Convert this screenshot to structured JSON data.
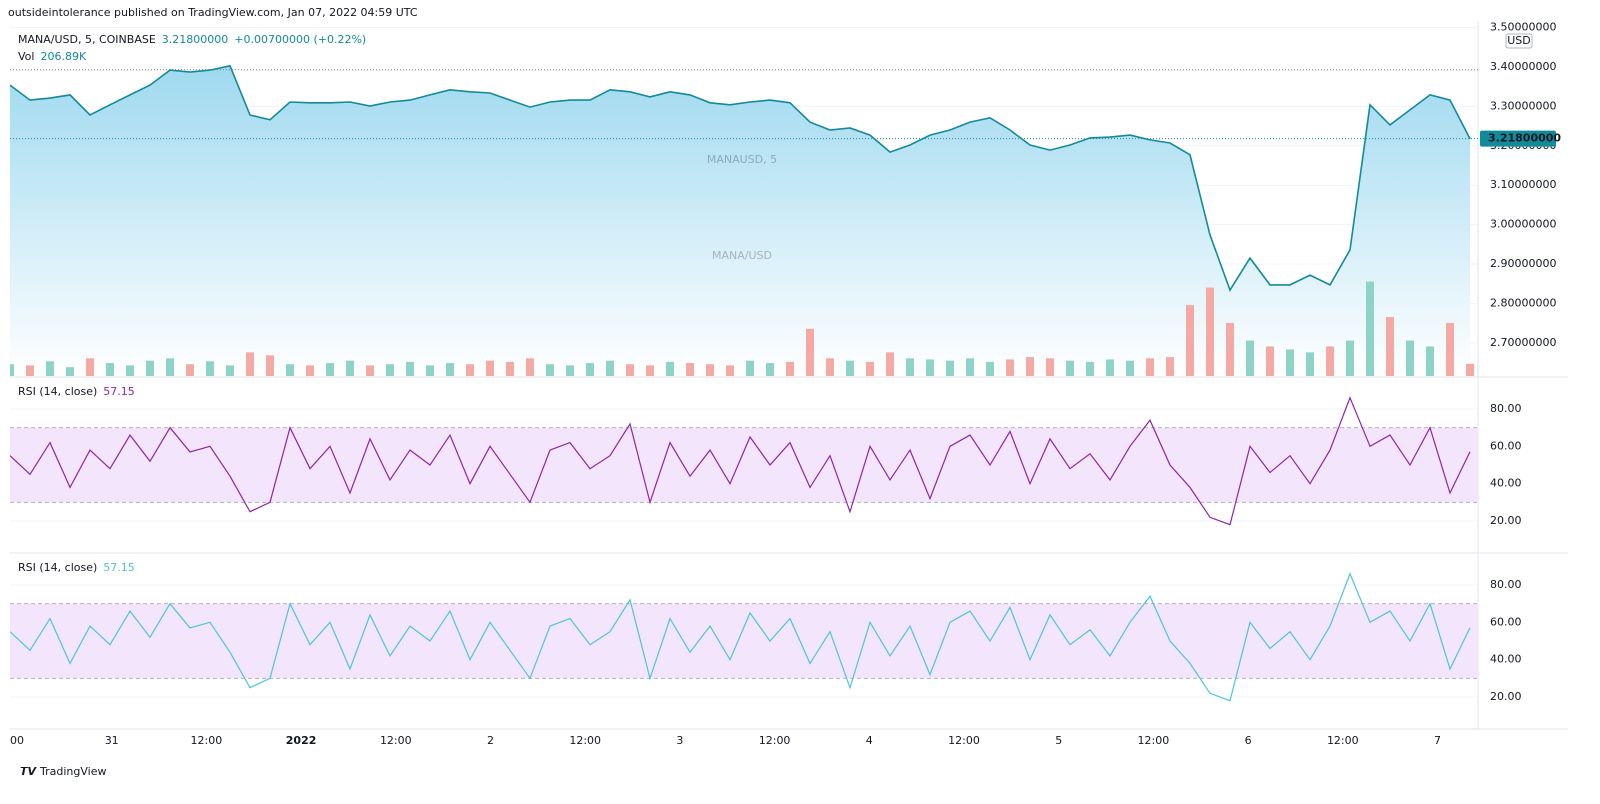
{
  "header": {
    "text": "outsideintolerance published on TradingView.com, Jan 07, 2022 04:59 UTC"
  },
  "chart_data": [
    {
      "type": "area",
      "title": "MANA/USD, 5, COINBASE",
      "last_label": "3.21800000",
      "change": "+0.00700000 (+0.22%)",
      "watermark": "MANAUSD, 5",
      "watermark_sub": "MANA/USD",
      "currency": "USD",
      "color": "#138a9a",
      "fill": "#b3e2f4",
      "values": [
        3.354,
        3.316,
        3.321,
        3.329,
        3.278,
        3.304,
        3.329,
        3.354,
        3.392,
        3.387,
        3.392,
        3.403,
        3.278,
        3.266,
        3.311,
        3.309,
        3.309,
        3.311,
        3.301,
        3.311,
        3.316,
        3.329,
        3.342,
        3.337,
        3.334,
        3.316,
        3.298,
        3.311,
        3.316,
        3.316,
        3.342,
        3.337,
        3.324,
        3.337,
        3.329,
        3.309,
        3.304,
        3.311,
        3.316,
        3.309,
        3.26,
        3.24,
        3.245,
        3.227,
        3.184,
        3.202,
        3.227,
        3.24,
        3.26,
        3.271,
        3.24,
        3.202,
        3.189,
        3.202,
        3.22,
        3.222,
        3.227,
        3.215,
        3.207,
        3.177,
        2.974,
        2.834,
        2.915,
        2.847,
        2.847,
        2.872,
        2.847,
        2.936,
        3.304,
        3.253,
        3.291,
        3.329,
        3.316,
        3.218
      ],
      "last_value": 3.218,
      "high_line": 3.393,
      "ylim": [
        2.616,
        3.514
      ],
      "yticks": [
        {
          "value": 2.7,
          "label": "2.70000000"
        },
        {
          "value": 2.8,
          "label": "2.80000000"
        },
        {
          "value": 2.9,
          "label": "2.90000000"
        },
        {
          "value": 3.0,
          "label": "3.00000000"
        },
        {
          "value": 3.1,
          "label": "3.10000000"
        },
        {
          "value": 3.2,
          "label": "3.20000000"
        },
        {
          "value": 3.3,
          "label": "3.30000000"
        },
        {
          "value": 3.4,
          "label": "3.40000000"
        },
        {
          "value": 3.5,
          "label": "3.50000000"
        }
      ],
      "volume": {
        "label": "Vol",
        "value_label": "206.89K",
        "up_color": "#8fd3c8",
        "down_color": "#f4a9a4",
        "vlim": [
          0,
          6000
        ],
        "values": [
          200,
          180,
          250,
          150,
          300,
          220,
          180,
          260,
          300,
          200,
          250,
          180,
          400,
          350,
          200,
          180,
          220,
          260,
          180,
          200,
          240,
          180,
          220,
          200,
          260,
          240,
          300,
          200,
          180,
          220,
          260,
          200,
          180,
          240,
          220,
          200,
          180,
          260,
          220,
          240,
          800,
          300,
          260,
          240,
          400,
          300,
          280,
          260,
          300,
          240,
          280,
          320,
          300,
          260,
          240,
          280,
          260,
          300,
          320,
          1200,
          1500,
          900,
          600,
          500,
          450,
          400,
          500,
          600,
          1600,
          1000,
          600,
          500,
          900,
          206.89
        ]
      }
    },
    {
      "type": "line",
      "title": "RSI (14, close)",
      "last_label": "57.15",
      "color": "#8e24aa",
      "band": [
        30,
        70
      ],
      "band_color": "#f3e5fb",
      "values": [
        55,
        45,
        62,
        38,
        58,
        48,
        66,
        52,
        70,
        57,
        60,
        44,
        25,
        30,
        70,
        48,
        60,
        35,
        64,
        42,
        58,
        50,
        66,
        40,
        60,
        45,
        30,
        58,
        62,
        48,
        55,
        72,
        30,
        62,
        44,
        58,
        40,
        65,
        50,
        62,
        38,
        55,
        25,
        60,
        42,
        58,
        32,
        60,
        66,
        50,
        68,
        40,
        64,
        48,
        56,
        42,
        60,
        74,
        50,
        38,
        22,
        18,
        60,
        46,
        55,
        40,
        58,
        86,
        60,
        66,
        50,
        70,
        35,
        57.15
      ],
      "ylim": [
        3.4,
        96.6
      ],
      "yticks": [
        {
          "value": 20,
          "label": "20.00"
        },
        {
          "value": 40,
          "label": "40.00"
        },
        {
          "value": 60,
          "label": "60.00"
        },
        {
          "value": 80,
          "label": "80.00"
        }
      ]
    },
    {
      "type": "line",
      "title": "RSI (14, close)",
      "last_label": "57.15",
      "color": "#4fc3dc",
      "band": [
        30,
        70
      ],
      "band_color": "#f3e5fb",
      "values": [
        55,
        45,
        62,
        38,
        58,
        48,
        66,
        52,
        70,
        57,
        60,
        44,
        25,
        30,
        70,
        48,
        60,
        35,
        64,
        42,
        58,
        50,
        66,
        40,
        60,
        45,
        30,
        58,
        62,
        48,
        55,
        72,
        30,
        62,
        44,
        58,
        40,
        65,
        50,
        62,
        38,
        55,
        25,
        60,
        42,
        58,
        32,
        60,
        66,
        50,
        68,
        40,
        64,
        48,
        56,
        42,
        60,
        74,
        50,
        38,
        22,
        18,
        60,
        46,
        55,
        40,
        58,
        86,
        60,
        66,
        50,
        70,
        35,
        57.15
      ],
      "ylim": [
        3.4,
        96.6
      ],
      "yticks": [
        {
          "value": 20,
          "label": "20.00"
        },
        {
          "value": 40,
          "label": "40.00"
        },
        {
          "value": 60,
          "label": "60.00"
        },
        {
          "value": 80,
          "label": "80.00"
        }
      ]
    }
  ],
  "x_axis": {
    "labels": [
      "00",
      "31",
      "12:00",
      "2022",
      "12:00",
      "2",
      "12:00",
      "3",
      "12:00",
      "4",
      "12:00",
      "5",
      "12:00",
      "6",
      "12:00",
      "7"
    ]
  },
  "footer": {
    "brand": "TradingView"
  }
}
